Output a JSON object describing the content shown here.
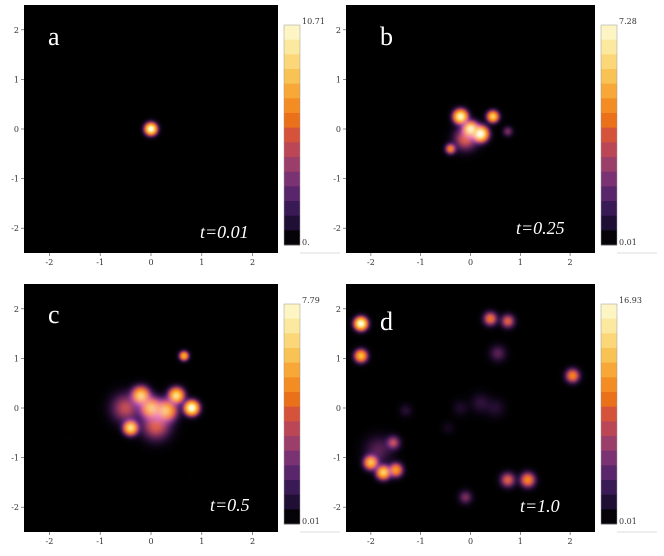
{
  "chart_data": [
    {
      "type": "heatmap",
      "panel_label": "a",
      "time_label": "t=0.01",
      "xlim": [
        -2.5,
        2.5
      ],
      "ylim": [
        -2.5,
        2.5
      ],
      "xticks": [
        -2,
        -1,
        0,
        1,
        2
      ],
      "yticks": [
        -2,
        -1,
        0,
        1,
        2
      ],
      "colorbar": {
        "max_label": "10.71",
        "min_label": "0."
      },
      "peaks": [
        {
          "x": 0.0,
          "y": 0.0,
          "amp": 1.0,
          "sigma": 0.1
        }
      ]
    },
    {
      "type": "heatmap",
      "panel_label": "b",
      "time_label": "t=0.25",
      "xlim": [
        -2.5,
        2.5
      ],
      "ylim": [
        -2.5,
        2.5
      ],
      "xticks": [
        -2,
        -1,
        0,
        1,
        2
      ],
      "yticks": [
        -2,
        -1,
        0,
        1,
        2
      ],
      "colorbar": {
        "max_label": "7.28",
        "min_label": "0.01"
      },
      "peaks": [
        {
          "x": -0.2,
          "y": 0.25,
          "amp": 0.95,
          "sigma": 0.12
        },
        {
          "x": 0.0,
          "y": 0.0,
          "amp": 0.9,
          "sigma": 0.13
        },
        {
          "x": 0.2,
          "y": -0.1,
          "amp": 1.0,
          "sigma": 0.13
        },
        {
          "x": 0.45,
          "y": 0.25,
          "amp": 0.8,
          "sigma": 0.1
        },
        {
          "x": -0.4,
          "y": -0.4,
          "amp": 0.6,
          "sigma": 0.09
        },
        {
          "x": 0.75,
          "y": -0.05,
          "amp": 0.35,
          "sigma": 0.09
        },
        {
          "x": -0.1,
          "y": -0.2,
          "amp": 0.5,
          "sigma": 0.2
        }
      ]
    },
    {
      "type": "heatmap",
      "panel_label": "c",
      "time_label": "t=0.5",
      "xlim": [
        -2.5,
        2.5
      ],
      "ylim": [
        -2.5,
        2.5
      ],
      "xticks": [
        -2,
        -1,
        0,
        1,
        2
      ],
      "yticks": [
        -2,
        -1,
        0,
        1,
        2
      ],
      "colorbar": {
        "max_label": "7.79",
        "min_label": "0.01"
      },
      "peaks": [
        {
          "x": -0.2,
          "y": 0.25,
          "amp": 0.8,
          "sigma": 0.15
        },
        {
          "x": 0.0,
          "y": 0.0,
          "amp": 0.75,
          "sigma": 0.18
        },
        {
          "x": 0.3,
          "y": -0.05,
          "amp": 0.75,
          "sigma": 0.18
        },
        {
          "x": 0.5,
          "y": 0.25,
          "amp": 0.85,
          "sigma": 0.13
        },
        {
          "x": 0.8,
          "y": 0.0,
          "amp": 1.0,
          "sigma": 0.12
        },
        {
          "x": -0.4,
          "y": -0.4,
          "amp": 0.85,
          "sigma": 0.12
        },
        {
          "x": 0.65,
          "y": 1.05,
          "amp": 0.7,
          "sigma": 0.08
        },
        {
          "x": -0.5,
          "y": 0.0,
          "amp": 0.45,
          "sigma": 0.25
        },
        {
          "x": 0.1,
          "y": -0.35,
          "amp": 0.5,
          "sigma": 0.25
        },
        {
          "x": -1.6,
          "y": -0.6,
          "amp": 0.04,
          "sigma": 0.08
        },
        {
          "x": 0.8,
          "y": -1.4,
          "amp": 0.04,
          "sigma": 0.08
        }
      ]
    },
    {
      "type": "heatmap",
      "panel_label": "d",
      "time_label": "t=1.0",
      "xlim": [
        -2.5,
        2.5
      ],
      "ylim": [
        -2.5,
        2.5
      ],
      "xticks": [
        -2,
        -1,
        0,
        1,
        2
      ],
      "yticks": [
        -2,
        -1,
        0,
        1,
        2
      ],
      "colorbar": {
        "max_label": "16.93",
        "min_label": "0.01"
      },
      "peaks": [
        {
          "x": -2.2,
          "y": 1.7,
          "amp": 1.0,
          "sigma": 0.11
        },
        {
          "x": -2.2,
          "y": 1.05,
          "amp": 0.75,
          "sigma": 0.11
        },
        {
          "x": -2.0,
          "y": -1.1,
          "amp": 0.75,
          "sigma": 0.12
        },
        {
          "x": -1.75,
          "y": -1.3,
          "amp": 0.8,
          "sigma": 0.12
        },
        {
          "x": -1.5,
          "y": -1.25,
          "amp": 0.65,
          "sigma": 0.12
        },
        {
          "x": -1.55,
          "y": -0.7,
          "amp": 0.45,
          "sigma": 0.12
        },
        {
          "x": -1.85,
          "y": -0.85,
          "amp": 0.3,
          "sigma": 0.25
        },
        {
          "x": 0.4,
          "y": 1.8,
          "amp": 0.55,
          "sigma": 0.12
        },
        {
          "x": 0.75,
          "y": 1.75,
          "amp": 0.5,
          "sigma": 0.12
        },
        {
          "x": 0.55,
          "y": 1.1,
          "amp": 0.3,
          "sigma": 0.15
        },
        {
          "x": 0.2,
          "y": 0.1,
          "amp": 0.22,
          "sigma": 0.18
        },
        {
          "x": 0.5,
          "y": 0.0,
          "amp": 0.2,
          "sigma": 0.18
        },
        {
          "x": -0.2,
          "y": 0.0,
          "amp": 0.18,
          "sigma": 0.15
        },
        {
          "x": -0.45,
          "y": -0.4,
          "amp": 0.15,
          "sigma": 0.12
        },
        {
          "x": -1.3,
          "y": -0.05,
          "amp": 0.2,
          "sigma": 0.12
        },
        {
          "x": 2.05,
          "y": 0.65,
          "amp": 0.6,
          "sigma": 0.12
        },
        {
          "x": 0.75,
          "y": -1.45,
          "amp": 0.5,
          "sigma": 0.13
        },
        {
          "x": 1.15,
          "y": -1.45,
          "amp": 0.6,
          "sigma": 0.13
        },
        {
          "x": -0.1,
          "y": -1.8,
          "amp": 0.35,
          "sigma": 0.12
        }
      ]
    }
  ]
}
